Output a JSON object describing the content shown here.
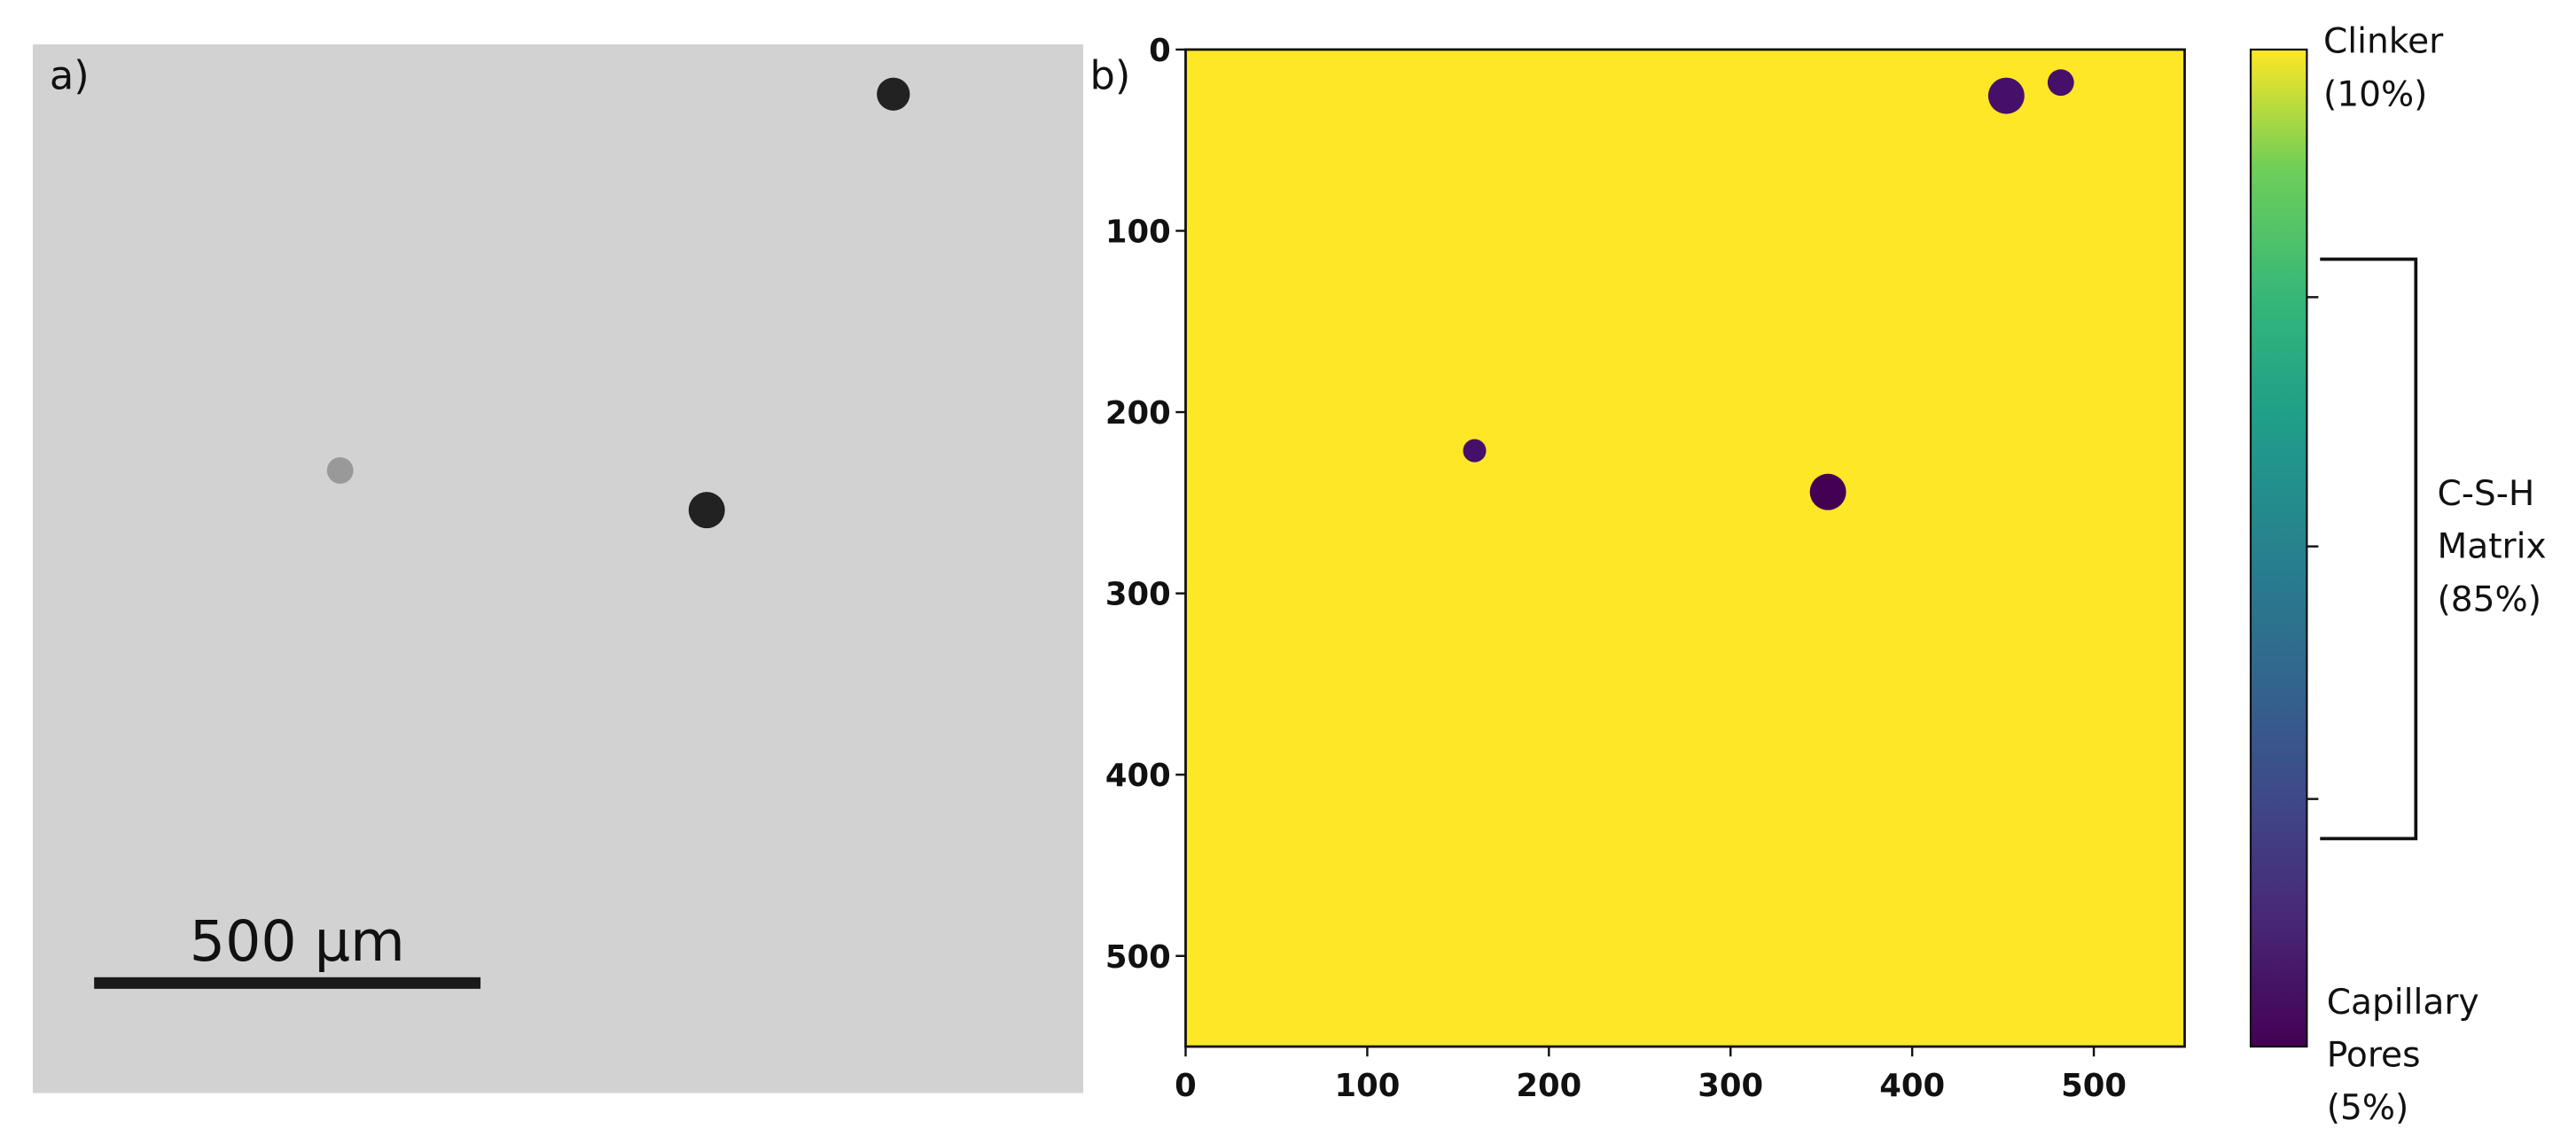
{
  "panel_a": {
    "label": "a)",
    "scale_bar": "500 μm"
  },
  "panel_b": {
    "label": "b)",
    "xlim": [
      0,
      550
    ],
    "ylim": [
      0,
      550
    ],
    "xticks": [
      0,
      100,
      200,
      300,
      400,
      500
    ],
    "yticks": [
      0,
      100,
      200,
      300,
      400,
      500
    ]
  },
  "colorbar": {
    "clinker": [
      "Clinker",
      "(10%)"
    ],
    "matrix": [
      "C-S-H",
      "Matrix",
      "(85%)"
    ],
    "pores": [
      "Capillary",
      "Pores",
      "(5%)"
    ]
  }
}
